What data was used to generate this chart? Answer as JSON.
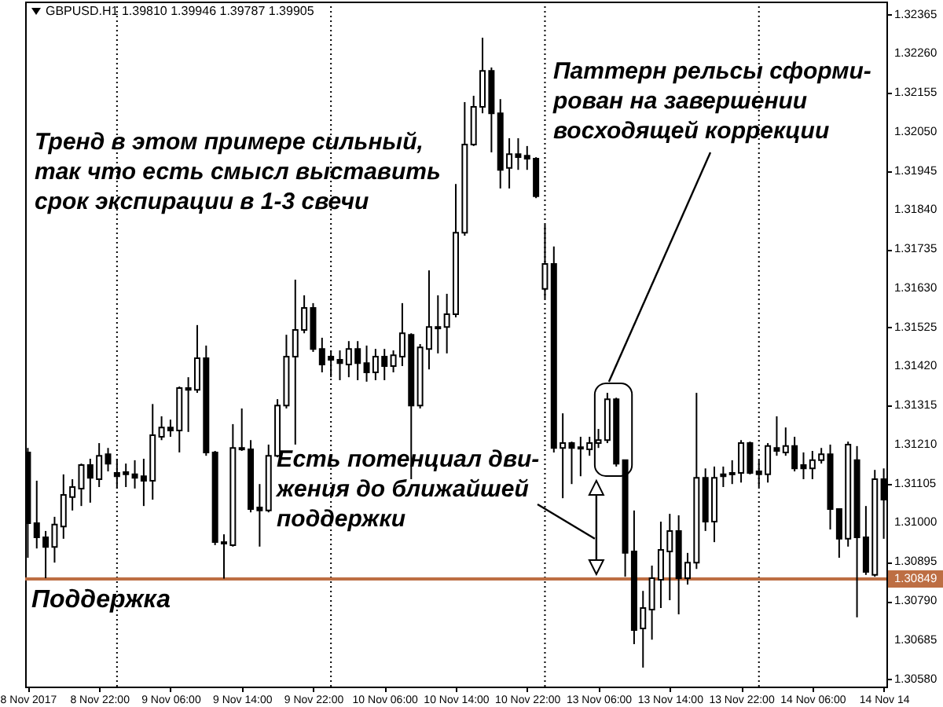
{
  "chart_data": {
    "type": "candlestick",
    "title": "GBPUSD.H1 1.39810 1.39946 1.39787 1.39905",
    "annotations": [
      "Тренд в этом примере сильный,\nтак что есть смысл выставить\nсрок экспирации в 1-3 свечи",
      "Паттерн рельсы сформи-\nрован на завершении\nвосходящей коррекции",
      "Есть потенциал дви-\nжения до ближайшей\nподдержки"
    ],
    "categories": [
      "8 Nov 2017",
      null,
      null,
      null,
      null,
      null,
      null,
      null,
      "8 Nov 22:00",
      null,
      null,
      null,
      null,
      null,
      null,
      null,
      "9 Nov 06:00",
      null,
      null,
      null,
      null,
      null,
      null,
      null,
      "9 Nov 14:00",
      null,
      null,
      null,
      null,
      null,
      null,
      null,
      "9 Nov 22:00",
      null,
      null,
      null,
      null,
      null,
      null,
      null,
      "10 Nov 06:00",
      null,
      null,
      null,
      null,
      null,
      null,
      null,
      "10 Nov 14:00",
      null,
      null,
      null,
      null,
      null,
      null,
      null,
      "10 Nov 22:00",
      null,
      null,
      null,
      null,
      null,
      null,
      null,
      "13 Nov 06:00",
      null,
      null,
      null,
      null,
      null,
      null,
      null,
      "13 Nov 14:00",
      null,
      null,
      null,
      null,
      null,
      null,
      null,
      "13 Nov 22:00",
      null,
      null,
      null,
      null,
      null,
      null,
      null,
      "14 Nov 06:00",
      null,
      null,
      null,
      null,
      null,
      null,
      null,
      "14 Nov 14"
    ],
    "ylim": [
      1.3056,
      1.324
    ],
    "yticks": [
      {
        "value": 1.3058,
        "label": "1.30580"
      },
      {
        "value": 1.30685,
        "label": "1.30685"
      },
      {
        "value": 1.3079,
        "label": "1.30790"
      },
      {
        "value": 1.30849,
        "label": "1.30849"
      },
      {
        "value": 1.30895,
        "label": "1.30895"
      },
      {
        "value": 1.31,
        "label": "1.31000"
      },
      {
        "value": 1.31105,
        "label": "1.31105"
      },
      {
        "value": 1.3121,
        "label": "1.31210"
      },
      {
        "value": 1.31315,
        "label": "1.31315"
      },
      {
        "value": 1.3142,
        "label": "1.31420"
      },
      {
        "value": 1.31525,
        "label": "1.31525"
      },
      {
        "value": 1.3163,
        "label": "1.31630"
      },
      {
        "value": 1.31735,
        "label": "1.31735"
      },
      {
        "value": 1.3184,
        "label": "1.31840"
      },
      {
        "value": 1.31945,
        "label": "1.31945"
      },
      {
        "value": 1.3205,
        "label": "1.32050"
      },
      {
        "value": 1.32155,
        "label": "1.32155"
      },
      {
        "value": 1.3226,
        "label": "1.32260"
      },
      {
        "value": 1.32365,
        "label": "1.32365"
      }
    ],
    "grid": "x",
    "ohlc": [
      [
        1.31189,
        1.31201,
        1.30906,
        1.30999
      ],
      [
        1.30999,
        1.31113,
        1.30931,
        1.30961
      ],
      [
        1.30961,
        1.30978,
        1.30851,
        1.30935
      ],
      [
        1.30935,
        1.31016,
        1.30893,
        1.30995
      ],
      [
        1.3099,
        1.3113,
        1.30957,
        1.31075
      ],
      [
        1.31069,
        1.31117,
        1.31033,
        1.31096
      ],
      [
        1.31092,
        1.31159,
        1.31045,
        1.31155
      ],
      [
        1.31155,
        1.31172,
        1.31054,
        1.31121
      ],
      [
        1.31117,
        1.31214,
        1.31096,
        1.3118
      ],
      [
        1.31184,
        1.31201,
        1.31138,
        1.31159
      ],
      [
        1.31134,
        1.31172,
        1.31092,
        1.31125
      ],
      [
        1.31136,
        1.31159,
        1.31096,
        1.3113
      ],
      [
        1.3113,
        1.31168,
        1.31092,
        1.31121
      ],
      [
        1.31125,
        1.31172,
        1.31045,
        1.31113
      ],
      [
        1.31113,
        1.31319,
        1.31062,
        1.31235
      ],
      [
        1.31231,
        1.31286,
        1.31222,
        1.31256
      ],
      [
        1.31256,
        1.31277,
        1.31231,
        1.31248
      ],
      [
        1.31248,
        1.31366,
        1.31189,
        1.31362
      ],
      [
        1.31362,
        1.31391,
        1.31244,
        1.31357
      ],
      [
        1.31357,
        1.31531,
        1.31349,
        1.31442
      ],
      [
        1.31442,
        1.31476,
        1.3118,
        1.31189
      ],
      [
        1.31189,
        1.31193,
        1.3094,
        1.30948
      ],
      [
        1.30948,
        1.30969,
        1.3085,
        1.30944
      ],
      [
        1.3094,
        1.31265,
        1.30936,
        1.31201
      ],
      [
        1.31201,
        1.31307,
        1.31193,
        1.31197
      ],
      [
        1.31197,
        1.31222,
        1.31028,
        1.31037
      ],
      [
        1.31041,
        1.31104,
        1.30936,
        1.31033
      ],
      [
        1.31033,
        1.3121,
        1.31028,
        1.3118
      ],
      [
        1.3118,
        1.31332,
        1.31176,
        1.31315
      ],
      [
        1.31315,
        1.31505,
        1.31307,
        1.31446
      ],
      [
        1.31446,
        1.31653,
        1.3121,
        1.31518
      ],
      [
        1.31518,
        1.31611,
        1.31509,
        1.31577
      ],
      [
        1.31577,
        1.3159,
        1.31459,
        1.31467
      ],
      [
        1.31467,
        1.31497,
        1.31404,
        1.31425
      ],
      [
        1.31446,
        1.31463,
        1.31391,
        1.31438
      ],
      [
        1.31438,
        1.31463,
        1.31383,
        1.31429
      ],
      [
        1.31425,
        1.31488,
        1.31391,
        1.31467
      ],
      [
        1.31467,
        1.31488,
        1.31383,
        1.31429
      ],
      [
        1.31429,
        1.31476,
        1.31379,
        1.31404
      ],
      [
        1.31404,
        1.31467,
        1.31383,
        1.31446
      ],
      [
        1.31446,
        1.31467,
        1.31383,
        1.31421
      ],
      [
        1.31421,
        1.31463,
        1.31404,
        1.3145
      ],
      [
        1.31446,
        1.3159,
        1.31421,
        1.31509
      ],
      [
        1.31505,
        1.31509,
        1.31117,
        1.31315
      ],
      [
        1.31315,
        1.3148,
        1.31307,
        1.31471
      ],
      [
        1.31467,
        1.31678,
        1.31412,
        1.31526
      ],
      [
        1.31522,
        1.31611,
        1.31455,
        1.31526
      ],
      [
        1.31526,
        1.31615,
        1.31455,
        1.3156
      ],
      [
        1.3156,
        1.3191,
        1.31552,
        1.31779
      ],
      [
        1.31779,
        1.3213,
        1.31771,
        1.32016
      ],
      [
        1.32016,
        1.32147,
        1.32012,
        1.32117
      ],
      [
        1.32117,
        1.32303,
        1.321,
        1.32214
      ],
      [
        1.32214,
        1.32223,
        1.31995,
        1.321
      ],
      [
        1.321,
        1.32138,
        1.31898,
        1.31948
      ],
      [
        1.31953,
        1.32033,
        1.31898,
        1.3199
      ],
      [
        1.3199,
        1.32033,
        1.31948,
        1.31982
      ],
      [
        1.31986,
        1.32012,
        1.31948,
        1.31978
      ],
      [
        1.31978,
        1.31982,
        1.31872,
        1.31877
      ],
      [
        1.31628,
        1.31801,
        1.31602,
        1.31695
      ],
      [
        1.31695,
        1.31742,
        1.31189,
        1.31201
      ],
      [
        1.31201,
        1.31294,
        1.31066,
        1.31214
      ],
      [
        1.31214,
        1.31218,
        1.31104,
        1.31201
      ],
      [
        1.31203,
        1.31231,
        1.31125,
        1.31199
      ],
      [
        1.31197,
        1.31231,
        1.3118,
        1.31214
      ],
      [
        1.31214,
        1.31252,
        1.31201,
        1.31222
      ],
      [
        1.31222,
        1.31349,
        1.31214,
        1.31332
      ],
      [
        1.31332,
        1.31336,
        1.31151,
        1.31159
      ],
      [
        1.31168,
        1.31168,
        1.30855,
        1.30919
      ],
      [
        1.30923,
        1.31033,
        1.30674,
        1.30712
      ],
      [
        1.30716,
        1.30817,
        1.30611,
        1.30771
      ],
      [
        1.30767,
        1.30885,
        1.30686,
        1.30851
      ],
      [
        1.30847,
        1.31003,
        1.30771,
        1.30927
      ],
      [
        1.30923,
        1.31024,
        1.30792,
        1.30978
      ],
      [
        1.30978,
        1.3102,
        1.30754,
        1.30851
      ],
      [
        1.30851,
        1.30919,
        1.30834,
        1.30893
      ],
      [
        1.30893,
        1.31349,
        1.30876,
        1.31121
      ],
      [
        1.31121,
        1.31146,
        1.30978,
        1.31003
      ],
      [
        1.31003,
        1.31151,
        1.30948,
        1.31121
      ],
      [
        1.3113,
        1.31151,
        1.31096,
        1.31125
      ],
      [
        1.3113,
        1.31168,
        1.31104,
        1.31134
      ],
      [
        1.31134,
        1.31222,
        1.31108,
        1.31214
      ],
      [
        1.31214,
        1.31218,
        1.3113,
        1.31134
      ],
      [
        1.31138,
        1.31168,
        1.31096,
        1.3113
      ],
      [
        1.3113,
        1.31214,
        1.31108,
        1.31206
      ],
      [
        1.31201,
        1.31286,
        1.3118,
        1.31193
      ],
      [
        1.31189,
        1.31256,
        1.3118,
        1.31206
      ],
      [
        1.31206,
        1.31231,
        1.31138,
        1.31146
      ],
      [
        1.31155,
        1.31189,
        1.31117,
        1.31146
      ],
      [
        1.31146,
        1.31193,
        1.31117,
        1.31168
      ],
      [
        1.31168,
        1.31201,
        1.31159,
        1.31184
      ],
      [
        1.31184,
        1.3121,
        1.30982,
        1.31037
      ],
      [
        1.31037,
        1.31037,
        1.30906,
        1.30957
      ],
      [
        1.30957,
        1.31218,
        1.30936,
        1.3121
      ],
      [
        1.31168,
        1.31206,
        1.30746,
        1.30961
      ],
      [
        1.30961,
        1.31045,
        1.3086,
        1.30868
      ],
      [
        1.3086,
        1.31142,
        1.30855,
        1.31117
      ],
      [
        1.31117,
        1.31146,
        1.30957,
        1.31062
      ]
    ],
    "color": "#000000",
    "colors": [
      "#000000",
      "#000000",
      "#000000",
      "#ffffff",
      "#ffffff",
      "#ffffff",
      "#ffffff",
      "#000000",
      "#ffffff",
      "#000000",
      "#000000",
      "#000000",
      "#000000",
      "#000000",
      "#ffffff",
      "#ffffff",
      "#000000",
      "#ffffff",
      "#000000",
      "#ffffff",
      "#000000",
      "#000000",
      "#000000",
      "#ffffff",
      "#000000",
      "#000000",
      "#000000",
      "#ffffff",
      "#ffffff",
      "#ffffff",
      "#ffffff",
      "#ffffff",
      "#000000",
      "#000000",
      "#000000",
      "#000000",
      "#ffffff",
      "#000000",
      "#000000",
      "#ffffff",
      "#000000",
      "#ffffff",
      "#ffffff",
      "#000000",
      "#ffffff",
      "#ffffff",
      "#ffffff",
      "#ffffff",
      "#ffffff",
      "#ffffff",
      "#ffffff",
      "#ffffff",
      "#000000",
      "#000000",
      "#ffffff",
      "#000000",
      "#000000",
      "#000000",
      "#ffffff",
      "#000000",
      "#ffffff",
      "#000000",
      "#000000",
      "#ffffff",
      "#ffffff",
      "#ffffff",
      "#000000",
      "#000000",
      "#000000",
      "#ffffff",
      "#ffffff",
      "#ffffff",
      "#ffffff",
      "#000000",
      "#ffffff",
      "#ffffff",
      "#000000",
      "#ffffff",
      "#000000",
      "#ffffff",
      "#ffffff",
      "#000000",
      "#000000",
      "#ffffff",
      "#000000",
      "#ffffff",
      "#000000",
      "#000000",
      "#ffffff",
      "#ffffff",
      "#000000",
      "#000000",
      "#ffffff",
      "#000000",
      "#000000",
      "#ffffff",
      "#000000"
    ],
    "ref_lines": [
      {
        "axis": "y",
        "value": 1.30849,
        "label": "Поддержка",
        "color": "#bd6e43"
      }
    ]
  }
}
